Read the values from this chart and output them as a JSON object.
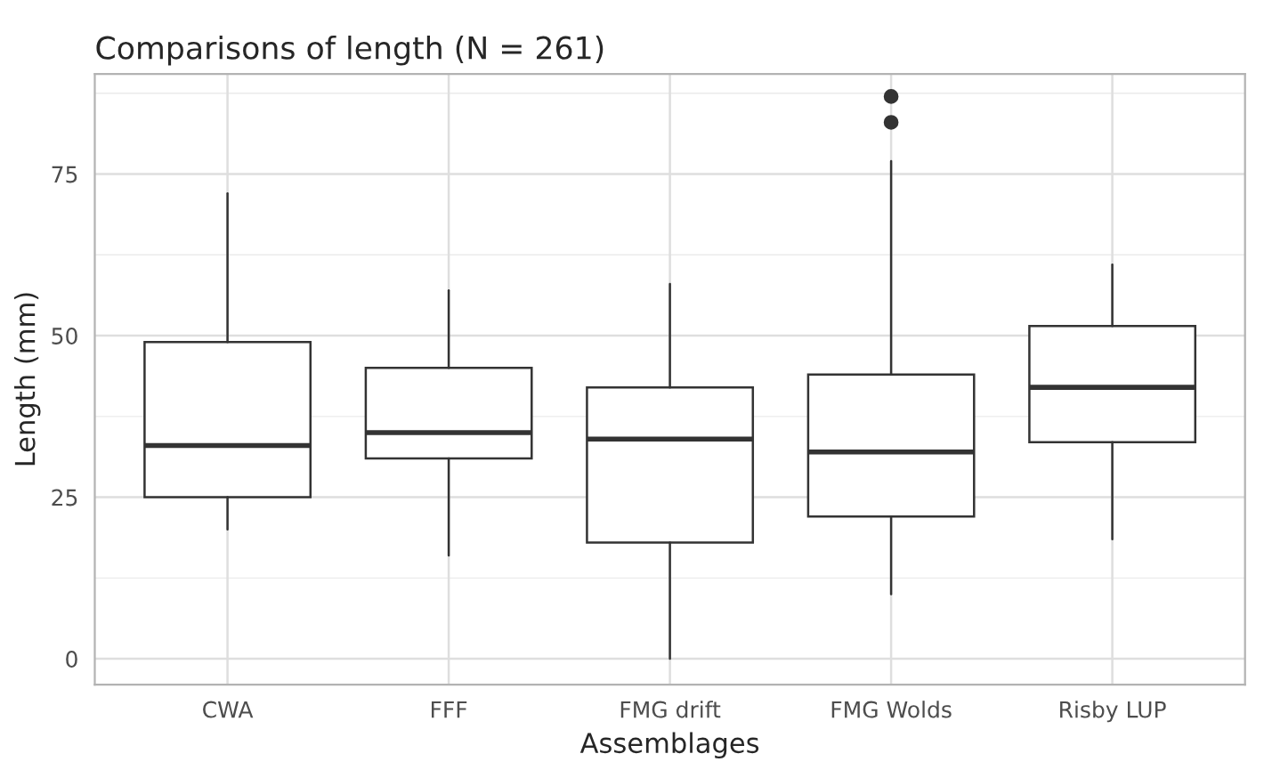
{
  "chart_data": {
    "type": "box",
    "title": "Comparisons of length (N = 261)",
    "xlabel": "Assemblages",
    "ylabel": "Length (mm)",
    "categories": [
      "CWA",
      "FFF",
      "FMG drift",
      "FMG Wolds",
      "Risby LUP"
    ],
    "boxes": [
      {
        "low": 20,
        "q1": 25,
        "median": 33,
        "q3": 49,
        "high": 72
      },
      {
        "low": 16,
        "q1": 31,
        "median": 35,
        "q3": 45,
        "high": 57
      },
      {
        "low": 0,
        "q1": 18,
        "median": 34,
        "q3": 42,
        "high": 58
      },
      {
        "low": 10,
        "q1": 22,
        "median": 32,
        "q3": 44,
        "high": 77,
        "outliers": [
          83,
          87
        ]
      },
      {
        "low": 18.5,
        "q1": 33.5,
        "median": 42,
        "q3": 51.5,
        "high": 61
      }
    ],
    "color": "#333333",
    "ylim": [
      -4,
      90.5
    ],
    "yticks": [
      0,
      25,
      50,
      75
    ],
    "grid": true,
    "legend": false
  }
}
